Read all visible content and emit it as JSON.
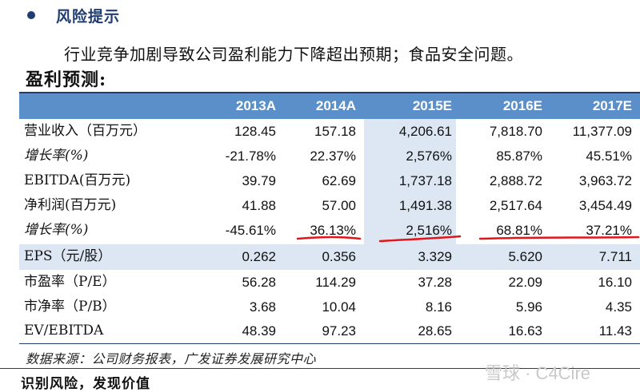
{
  "risk": {
    "title": "风险提示",
    "text": "行业竞争加剧导致公司盈利能力下降超出预期；食品安全问题。"
  },
  "section": {
    "title": "盈利预测:"
  },
  "table": {
    "headers": [
      "2013A",
      "2014A",
      "2015E",
      "2016E",
      "2017E"
    ],
    "rows": [
      {
        "label": "营业收入（百万元）",
        "values": [
          "128.45",
          "157.18",
          "4,206.61",
          "7,818.70",
          "11,377.09"
        ]
      },
      {
        "label": "增长率(%)",
        "values": [
          "-21.78%",
          "22.37%",
          "2,576%",
          "85.87%",
          "45.51%"
        ]
      },
      {
        "label": "EBITDA(百万元)",
        "values": [
          "39.79",
          "62.69",
          "1,737.18",
          "2,888.72",
          "3,963.72"
        ]
      },
      {
        "label": "净利润(百万元)",
        "values": [
          "41.88",
          "57.00",
          "1,491.38",
          "2,517.64",
          "3,454.49"
        ]
      },
      {
        "label": "增长率(%)",
        "values": [
          "-45.61%",
          "36.13%",
          "2,516%",
          "68.81%",
          "37.21%"
        ]
      },
      {
        "label": "EPS（元/股）",
        "values": [
          "0.262",
          "0.356",
          "3.329",
          "5.620",
          "7.711"
        ]
      },
      {
        "label": "市盈率（P/E）",
        "values": [
          "56.28",
          "114.29",
          "37.28",
          "22.09",
          "16.10"
        ]
      },
      {
        "label": "市净率（P/B）",
        "values": [
          "3.68",
          "10.04",
          "8.16",
          "5.96",
          "4.35"
        ]
      },
      {
        "label": "EV/EBITDA",
        "values": [
          "48.39",
          "97.23",
          "28.65",
          "16.63",
          "11.43"
        ]
      }
    ]
  },
  "source": "数据来源：公司财务报表，广发证券发展研究中心",
  "footer": "识别风险，发现价值",
  "watermark": "雪球 · C4Cire",
  "colors": {
    "header_bg": "#5b8fc9",
    "highlight": "#dce7f3",
    "title_blue": "#1f3c73",
    "annotation_red": "#e0161b"
  }
}
